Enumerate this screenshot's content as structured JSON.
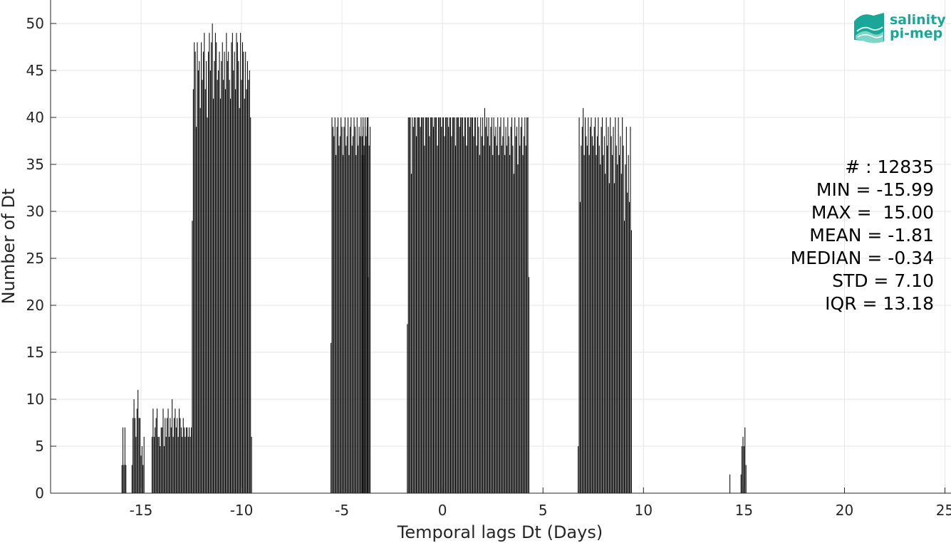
{
  "chart_data": {
    "type": "bar",
    "xlabel": "Temporal lags Dt (Days)",
    "ylabel": "Number of Dt",
    "xlim": [
      -19.5,
      25.3
    ],
    "ylim": [
      0,
      52.5
    ],
    "xticks": [
      -15,
      -10,
      -5,
      0,
      5,
      10,
      15,
      20,
      25
    ],
    "yticks": [
      0,
      5,
      10,
      15,
      20,
      25,
      30,
      35,
      40,
      45,
      50
    ],
    "grid": true,
    "bar_color": "#000000",
    "bins": [
      {
        "x": -15.95,
        "values": [
          3,
          7,
          3,
          7,
          3
        ]
      },
      {
        "x": -15.45,
        "values": [
          3,
          8,
          10,
          8,
          6,
          9,
          11,
          8,
          8,
          4,
          5,
          3,
          6
        ]
      },
      {
        "x": -14.45,
        "values": [
          6,
          9,
          6,
          7,
          8,
          9,
          6,
          6,
          5,
          7,
          7,
          9,
          5,
          8,
          6,
          8,
          9,
          6,
          8,
          7
        ]
      },
      {
        "x": -13.45,
        "values": [
          10,
          6,
          8,
          9,
          7,
          8,
          6,
          9,
          8,
          7,
          6,
          8,
          7,
          6,
          7,
          7,
          6,
          7,
          6,
          7
        ]
      },
      {
        "x": -12.45,
        "values": [
          29,
          43,
          48,
          47,
          39,
          48,
          45,
          46,
          41,
          48,
          44,
          47,
          49,
          43,
          46,
          40,
          47,
          49,
          45,
          48
        ]
      },
      {
        "x": -11.45,
        "values": [
          50,
          42,
          46,
          49,
          48,
          44,
          45,
          47,
          42,
          46,
          48,
          44,
          47,
          43,
          49,
          46,
          47,
          44,
          42,
          48
        ]
      },
      {
        "x": -10.45,
        "values": [
          49,
          45,
          47,
          43,
          49,
          48,
          46,
          41,
          49,
          44,
          48,
          47,
          42,
          47,
          43,
          46,
          44,
          45,
          40,
          6
        ]
      },
      {
        "x": -5.55,
        "values": [
          16,
          40,
          39,
          38,
          40,
          36,
          39,
          40,
          37,
          38,
          40,
          39,
          36,
          39,
          40,
          37,
          38,
          40,
          36,
          39
        ]
      },
      {
        "x": -4.55,
        "values": [
          40,
          37,
          38,
          40,
          39,
          36,
          40,
          37,
          39,
          38,
          40,
          36,
          39,
          37,
          40,
          38,
          39,
          40,
          37,
          39
        ]
      },
      {
        "x": -4.0,
        "values": [
          38,
          40,
          36,
          39,
          37,
          40,
          23
        ]
      },
      {
        "x": -1.75,
        "values": [
          18,
          40,
          40,
          40,
          34,
          40,
          39,
          40,
          40,
          38,
          40,
          40,
          40,
          39,
          40,
          40,
          40,
          37,
          40,
          40
        ]
      },
      {
        "x": -0.75,
        "values": [
          40,
          40,
          38,
          40,
          40,
          40,
          39,
          40,
          40,
          40,
          37,
          40,
          40,
          40,
          39,
          40,
          40,
          38,
          40,
          40
        ]
      },
      {
        "x": 0.25,
        "values": [
          40,
          39,
          40,
          40,
          38,
          40,
          40,
          40,
          37,
          40,
          40,
          40,
          39,
          40,
          40,
          40,
          38,
          40,
          40,
          37
        ]
      },
      {
        "x": 1.25,
        "values": [
          40,
          40,
          39,
          40,
          40,
          40,
          38,
          40,
          40,
          37,
          40,
          39,
          36,
          40,
          38,
          40,
          37,
          41,
          39,
          40
        ]
      },
      {
        "x": 2.25,
        "values": [
          38,
          40,
          37,
          39,
          40,
          36,
          40,
          38,
          39,
          37,
          40,
          36,
          39,
          40,
          37,
          38,
          40,
          36,
          39,
          37
        ]
      },
      {
        "x": 3.25,
        "values": [
          40,
          38,
          36,
          39,
          40,
          37,
          34,
          40,
          38,
          39,
          35,
          40,
          37,
          39,
          40,
          36,
          38,
          40,
          37,
          40
        ]
      },
      {
        "x": 4.25,
        "values": [
          40,
          23
        ]
      },
      {
        "x": 6.75,
        "values": [
          5,
          40,
          31,
          37,
          39,
          41,
          36,
          40,
          38,
          37,
          40,
          36,
          39,
          40,
          38,
          37,
          39,
          40,
          36,
          38
        ]
      },
      {
        "x": 7.75,
        "values": [
          40,
          37,
          35,
          39,
          40,
          36,
          38,
          34,
          40,
          37,
          39,
          33,
          40,
          38,
          36,
          39,
          33,
          40,
          37,
          35
        ]
      },
      {
        "x": 8.75,
        "values": [
          40,
          36,
          38,
          34,
          40,
          37,
          29,
          35,
          39,
          32,
          36,
          31,
          39,
          28
        ]
      },
      {
        "x": 14.3,
        "values": [
          2
        ]
      },
      {
        "x": 14.85,
        "values": [
          2,
          5,
          6,
          5,
          7,
          3
        ]
      }
    ]
  },
  "stats": {
    "count": "# : 12835",
    "min": "MIN = -15.99",
    "max": "MAX =  15.00",
    "mean": "MEAN = -1.81",
    "median": "MEDIAN = -0.34",
    "std": "STD = 7.10",
    "iqr": "IQR = 13.18"
  },
  "logo": {
    "line1": "salinity",
    "line2": "pi-mep",
    "color": "#1aa79a"
  }
}
